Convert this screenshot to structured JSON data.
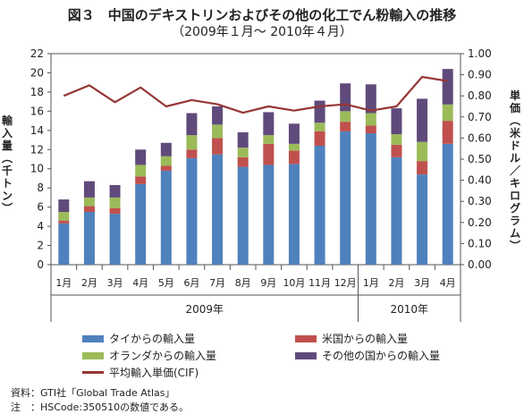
{
  "title": {
    "line1": "図３　中国のデキストリンおよびその他の化工でん粉輸入の推移",
    "line2": "（2009年１月〜 2010年４月）"
  },
  "axis": {
    "left_label": "輸入量︵千トン︶",
    "right_label": "単価︵米ドル／キログラム︶"
  },
  "source": {
    "line1": "資料：GTI社「Global Trade Atlas」",
    "line2": "注　：HSCode:350510の数値である。"
  },
  "chart_data": {
    "type": "bar",
    "stacked": true,
    "categories": [
      "1月",
      "2月",
      "3月",
      "4月",
      "5月",
      "6月",
      "7月",
      "8月",
      "9月",
      "10月",
      "11月",
      "12月",
      "1月",
      "2月",
      "3月",
      "4月"
    ],
    "year_groups": [
      {
        "label": "2009年",
        "start": 0,
        "end": 11
      },
      {
        "label": "2010年",
        "start": 12,
        "end": 15
      }
    ],
    "ylim_left": [
      0,
      22
    ],
    "yticks_left": [
      0,
      2,
      4,
      6,
      8,
      10,
      12,
      14,
      16,
      18,
      20,
      22
    ],
    "ylim_right": [
      0,
      1.0
    ],
    "yticks_right": [
      "0.00",
      "0.10",
      "0.20",
      "0.30",
      "0.40",
      "0.50",
      "0.60",
      "0.70",
      "0.80",
      "0.90",
      "1.00"
    ],
    "grid": false,
    "series": [
      {
        "name": "タイからの輸入量",
        "color": "#4f81bd",
        "values": [
          4.3,
          5.5,
          5.3,
          8.4,
          9.8,
          11.1,
          11.5,
          10.2,
          10.4,
          10.5,
          12.4,
          13.9,
          13.7,
          11.2,
          9.4,
          12.6
        ]
      },
      {
        "name": "米国からの輸入量",
        "color": "#c0504d",
        "values": [
          0.3,
          0.6,
          0.6,
          0.8,
          0.5,
          0.9,
          1.7,
          1.0,
          2.2,
          1.4,
          1.5,
          1.0,
          0.8,
          1.3,
          1.4,
          2.4
        ]
      },
      {
        "name": "オランダからの輸入量",
        "color": "#9bbb59",
        "values": [
          0.9,
          0.9,
          1.1,
          1.2,
          1.0,
          1.5,
          1.4,
          1.0,
          0.9,
          0.7,
          0.9,
          1.1,
          1.3,
          1.1,
          2.0,
          1.7
        ]
      },
      {
        "name": "その他の国からの輸入量",
        "color": "#604a7b",
        "values": [
          1.3,
          1.7,
          1.3,
          1.6,
          1.4,
          2.3,
          1.9,
          1.6,
          2.4,
          2.1,
          2.3,
          2.9,
          3.0,
          2.7,
          4.5,
          3.7
        ]
      }
    ],
    "line_series": {
      "name": "平均輸入単価(CIF)",
      "color": "#953735",
      "values": [
        0.8,
        0.85,
        0.77,
        0.84,
        0.75,
        0.78,
        0.76,
        0.72,
        0.75,
        0.73,
        0.75,
        0.76,
        0.73,
        0.75,
        0.89,
        0.87
      ]
    }
  }
}
